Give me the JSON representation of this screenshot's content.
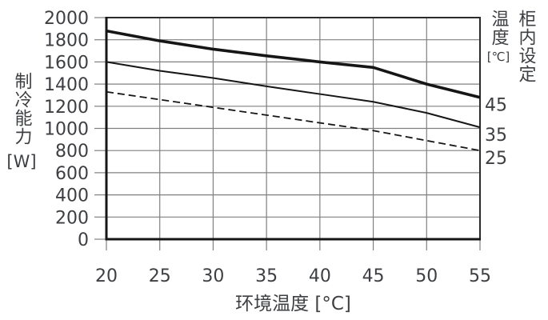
{
  "colors": {
    "background": "#ffffff",
    "line": "#161616",
    "border": "#2b2b2b",
    "grid": "#808080",
    "text": "#3d3f42"
  },
  "chart_data": {
    "type": "line",
    "xlabel": "环境温度 [°C]",
    "ylabel": "制冷能力",
    "ylabel_unit": "[W]",
    "legend": {
      "title_col_left": "温度",
      "title_col_left_unit": "[℃]",
      "title_col_right": "柜内设定"
    },
    "x": [
      20,
      25,
      30,
      35,
      40,
      45,
      50,
      55
    ],
    "x_ticks": [
      20,
      25,
      30,
      35,
      40,
      45,
      50,
      55
    ],
    "y_ticks": [
      0,
      200,
      400,
      600,
      800,
      1000,
      1200,
      1400,
      1600,
      1800,
      2000
    ],
    "xlim": [
      20,
      55
    ],
    "ylim": [
      0,
      2000
    ],
    "grid": true,
    "series": [
      {
        "name": "set-45",
        "label": "45",
        "style": "thick-solid",
        "values": [
          1880,
          1790,
          1715,
          1655,
          1600,
          1550,
          1400,
          1280
        ]
      },
      {
        "name": "set-35",
        "label": "35",
        "style": "thin-solid",
        "values": [
          1600,
          1520,
          1455,
          1380,
          1310,
          1240,
          1140,
          1010
        ]
      },
      {
        "name": "set-25",
        "label": "25",
        "style": "dashed",
        "values": [
          1330,
          1260,
          1190,
          1120,
          1050,
          980,
          890,
          800
        ]
      }
    ]
  }
}
